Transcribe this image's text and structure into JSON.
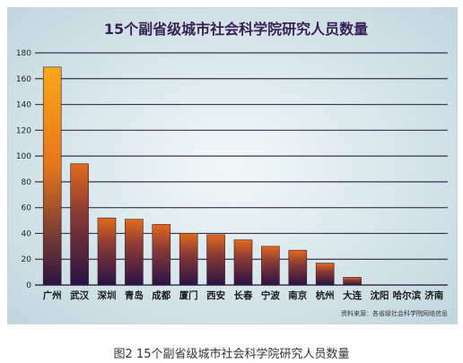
{
  "chart_data": {
    "type": "bar",
    "title": "15个副省级城市社会科学院研究人员数量",
    "categories": [
      "广州",
      "武汉",
      "深圳",
      "青岛",
      "成都",
      "厦门",
      "西安",
      "长春",
      "宁波",
      "南京",
      "杭州",
      "大连",
      "沈阳",
      "哈尔滨",
      "济南"
    ],
    "values": [
      169,
      94,
      52,
      51,
      47,
      40,
      39,
      35,
      30,
      27,
      17,
      6,
      0,
      0,
      0
    ],
    "ylim": [
      0,
      180
    ],
    "yticks": [
      0,
      20,
      40,
      60,
      80,
      100,
      120,
      140,
      160,
      180
    ],
    "grid": true,
    "source": "资料来源：各省级社会科学院网络信息",
    "colors": {
      "background": "#cfe1e6",
      "title": "#3a1f55",
      "grid": "#3c3050",
      "bar_top": "#f6a519",
      "bar_bottom": "#2a1346"
    }
  },
  "caption": "图2  15个副省级城市社会科学院研究人员数量"
}
